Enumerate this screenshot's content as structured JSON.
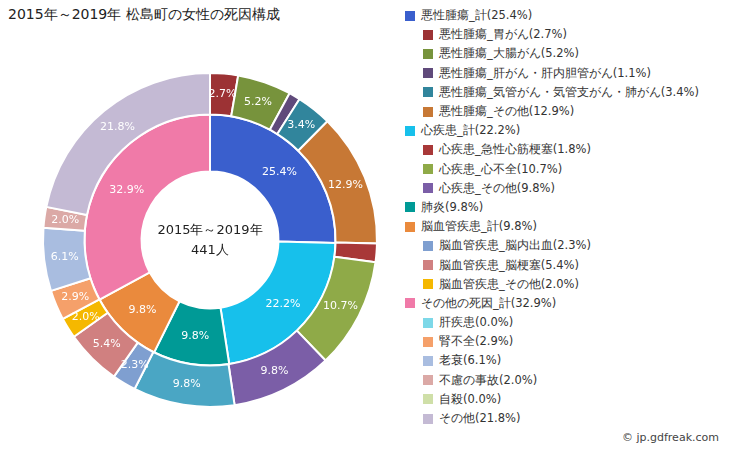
{
  "chart_data": {
    "type": "doughnut",
    "title": "2015年～2019年 松島町の女性の死因構成",
    "center_text": [
      "2015年～2019年",
      "441人"
    ],
    "source": "© jp.gdfreak.com",
    "legend": "right",
    "data_labels": true,
    "groups": [
      {
        "name": "悪性腫瘍_計(25.4%)",
        "value": 25.4,
        "value_label": "25.4%",
        "color": "#3a5fcd",
        "children": [
          {
            "name": "悪性腫瘍_胃がん(2.7%)",
            "value": 2.7,
            "value_label": "2.7%",
            "color": "#9c3234"
          },
          {
            "name": "悪性腫瘍_大腸がん(5.2%)",
            "value": 5.2,
            "value_label": "5.2%",
            "color": "#77933c"
          },
          {
            "name": "悪性腫瘍_肝がん・肝内胆管がん(1.1%)",
            "value": 1.1,
            "value_label": null,
            "color": "#604a7b"
          },
          {
            "name": "悪性腫瘍_気管がん・気管支がん・肺がん(3.4%)",
            "value": 3.4,
            "value_label": "3.4%",
            "color": "#31859c"
          },
          {
            "name": "悪性腫瘍_その他(12.9%)",
            "value": 12.9,
            "value_label": "12.9%",
            "color": "#c77835"
          }
        ]
      },
      {
        "name": "心疾患_計(22.2%)",
        "value": 22.2,
        "value_label": "22.2%",
        "color": "#17c0eb",
        "children": [
          {
            "name": "心疾患_急性心筋梗塞(1.8%)",
            "value": 1.8,
            "value_label": null,
            "color": "#a83838"
          },
          {
            "name": "心疾患_心不全(10.7%)",
            "value": 10.7,
            "value_label": "10.7%",
            "color": "#8faa48"
          },
          {
            "name": "心疾患_その他(9.8%)",
            "value": 9.8,
            "value_label": "9.8%",
            "color": "#7b5ea7"
          }
        ]
      },
      {
        "name": "肺炎(9.8%)",
        "value": 9.8,
        "value_label": "9.8%",
        "color": "#009a96",
        "children": [
          {
            "name": null,
            "value": 9.8,
            "value_label": "9.8%",
            "color": "#4aa6c4"
          }
        ]
      },
      {
        "name": "脳血管疾患_計(9.8%)",
        "value": 9.8,
        "value_label": "9.8%",
        "color": "#ea8a3d",
        "children": [
          {
            "name": "脳血管疾患_脳内出血(2.3%)",
            "value": 2.3,
            "value_label": "2.3%",
            "color": "#7f9fd0"
          },
          {
            "name": "脳血管疾患_脳梗塞(5.4%)",
            "value": 5.4,
            "value_label": "5.4%",
            "color": "#d08080"
          },
          {
            "name": "脳血管疾患_その他(2.0%)",
            "value": 2.0,
            "value_label": "2.0%",
            "color": "#f5b800"
          }
        ]
      },
      {
        "name": "その他の死因_計(32.9%)",
        "value": 32.9,
        "value_label": "32.9%",
        "color": "#f07aa8",
        "children": [
          {
            "name": "肝疾患(0.0%)",
            "value": 0.0,
            "value_label": null,
            "color": "#7dd8e8"
          },
          {
            "name": "腎不全(2.9%)",
            "value": 2.9,
            "value_label": "2.9%",
            "color": "#f5a06a"
          },
          {
            "name": "老衰(6.1%)",
            "value": 6.1,
            "value_label": "6.1%",
            "color": "#a9bde0"
          },
          {
            "name": "不慮の事故(2.0%)",
            "value": 2.0,
            "value_label": "2.0%",
            "color": "#dba9a6"
          },
          {
            "name": "自殺(0.0%)",
            "value": 0.0,
            "value_label": null,
            "color": "#cfdfa8"
          },
          {
            "name": "その他(21.8%)",
            "value": 21.8,
            "value_label": "21.8%",
            "color": "#c4bad4"
          }
        ]
      }
    ]
  }
}
